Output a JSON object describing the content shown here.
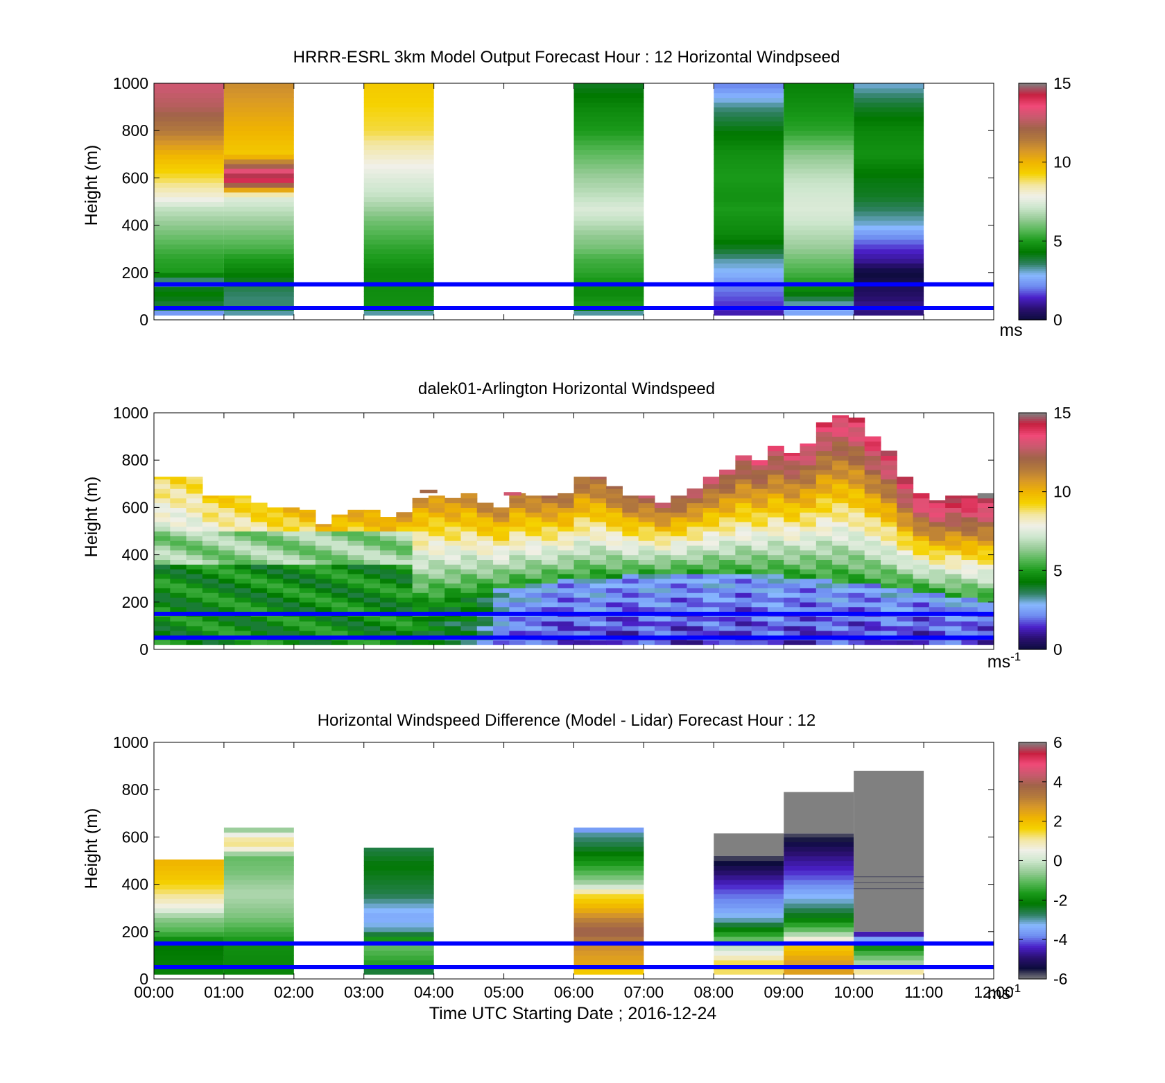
{
  "colors": {
    "ref_line": "#0000ff",
    "nodata": "#808080",
    "speed_scale": [
      "#0c0c3c",
      "#2a1070",
      "#4a20c8",
      "#6e8cf0",
      "#88b8ff",
      "#2e8060",
      "#007800",
      "#1a9a1a",
      "#58b858",
      "#98cc98",
      "#cde6cd",
      "#f0f0e8",
      "#f3e6a0",
      "#f5d200",
      "#f0b400",
      "#d89828",
      "#b47a3c",
      "#a06448",
      "#c85a6e",
      "#f04a78",
      "#c82040",
      "#808080"
    ],
    "diff_scale": [
      "#808080",
      "#0c0c3c",
      "#2a1070",
      "#4a20c8",
      "#6e8cf0",
      "#88b8ff",
      "#2e8060",
      "#007800",
      "#1a9a1a",
      "#58b858",
      "#98cc98",
      "#cde6cd",
      "#f0f0e8",
      "#f3e6a0",
      "#f5d200",
      "#f0b400",
      "#d89828",
      "#b47a3c",
      "#a06448",
      "#c85a6e",
      "#f04a78",
      "#c82040",
      "#808080"
    ]
  },
  "x_axis": {
    "ticks": [
      "00:00",
      "01:00",
      "02:00",
      "03:00",
      "04:00",
      "05:00",
      "06:00",
      "07:00",
      "08:00",
      "09:00",
      "10:00",
      "11:00",
      "12:00"
    ],
    "label": "Time UTC  Starting Date ; 2016-12-24"
  },
  "chart_data": [
    {
      "type": "heatmap",
      "title": "HRRR-ESRL 3km Model Output   Forecast Hour : 12 Horizontal Windpseed",
      "ylabel": "Height (m)",
      "xlim": [
        0,
        12
      ],
      "ylim": [
        0,
        1000
      ],
      "y_ticks": [
        0,
        200,
        400,
        600,
        800,
        1000
      ],
      "reference_lines_m": [
        50,
        150
      ],
      "colorbar": {
        "min": 0,
        "max": 15,
        "ticks": [
          0,
          5,
          10,
          15
        ],
        "unit": "ms",
        "unit_sup": ""
      },
      "columns": [
        {
          "t0": 0,
          "t1": 1,
          "profile": [
            [
              25,
              2
            ],
            [
              45,
              3.5
            ],
            [
              60,
              3.8
            ],
            [
              80,
              4
            ],
            [
              120,
              4.5
            ],
            [
              160,
              3
            ],
            [
              200,
              5
            ],
            [
              260,
              5.2
            ],
            [
              300,
              5.5
            ],
            [
              360,
              6
            ],
            [
              420,
              6.5
            ],
            [
              470,
              7
            ],
            [
              520,
              8
            ],
            [
              600,
              9
            ],
            [
              700,
              10
            ],
            [
              800,
              11.5
            ],
            [
              900,
              12.5
            ],
            [
              1000,
              13
            ]
          ]
        },
        {
          "t0": 1,
          "t1": 2,
          "profile": [
            [
              25,
              3
            ],
            [
              45,
              4
            ],
            [
              60,
              3.5
            ],
            [
              100,
              3.5
            ],
            [
              150,
              3.8
            ],
            [
              200,
              4.5
            ],
            [
              260,
              5
            ],
            [
              300,
              5.5
            ],
            [
              360,
              6
            ],
            [
              420,
              6.5
            ],
            [
              470,
              7
            ],
            [
              520,
              7.5
            ],
            [
              600,
              15
            ],
            [
              700,
              9.5
            ],
            [
              800,
              10
            ],
            [
              900,
              10.5
            ],
            [
              1000,
              11
            ]
          ]
        },
        {
          "t0": 3,
          "t1": 4,
          "profile": [
            [
              25,
              3
            ],
            [
              60,
              4.8
            ],
            [
              200,
              4.6
            ],
            [
              260,
              5
            ],
            [
              300,
              5.2
            ],
            [
              360,
              5.6
            ],
            [
              420,
              6
            ],
            [
              470,
              6.5
            ],
            [
              520,
              7
            ],
            [
              600,
              7.5
            ],
            [
              700,
              8.2
            ],
            [
              800,
              9
            ],
            [
              1000,
              9.5
            ]
          ]
        },
        {
          "t0": 6,
          "t1": 7,
          "profile": [
            [
              25,
              3
            ],
            [
              60,
              5
            ],
            [
              120,
              4.6
            ],
            [
              200,
              5.2
            ],
            [
              260,
              5.5
            ],
            [
              300,
              6
            ],
            [
              360,
              6.4
            ],
            [
              420,
              7
            ],
            [
              470,
              7.4
            ],
            [
              520,
              7
            ],
            [
              600,
              6.5
            ],
            [
              700,
              5.8
            ],
            [
              800,
              5
            ],
            [
              900,
              4.6
            ],
            [
              1000,
              4
            ]
          ]
        },
        {
          "t0": 8,
          "t1": 9,
          "profile": [
            [
              25,
              1.2
            ],
            [
              60,
              1.5
            ],
            [
              100,
              1.8
            ],
            [
              150,
              2.2
            ],
            [
              200,
              2.8
            ],
            [
              250,
              3.2
            ],
            [
              300,
              4
            ],
            [
              360,
              4.6
            ],
            [
              420,
              4.8
            ],
            [
              470,
              5
            ],
            [
              520,
              4.8
            ],
            [
              600,
              5
            ],
            [
              700,
              4.8
            ],
            [
              800,
              4.2
            ],
            [
              900,
              3.4
            ],
            [
              1000,
              2
            ]
          ]
        },
        {
          "t0": 9,
          "t1": 10,
          "profile": [
            [
              25,
              2.5
            ],
            [
              60,
              3
            ],
            [
              100,
              4
            ],
            [
              150,
              5
            ],
            [
              200,
              5.5
            ],
            [
              260,
              6
            ],
            [
              300,
              6.4
            ],
            [
              360,
              6.8
            ],
            [
              420,
              7.2
            ],
            [
              470,
              7.4
            ],
            [
              520,
              7.3
            ],
            [
              600,
              7
            ],
            [
              700,
              6.3
            ],
            [
              800,
              5.2
            ],
            [
              900,
              4.8
            ],
            [
              1000,
              4.5
            ]
          ]
        },
        {
          "t0": 10,
          "t1": 11,
          "profile": [
            [
              25,
              0.8
            ],
            [
              60,
              1
            ],
            [
              100,
              0.6
            ],
            [
              150,
              0.3
            ],
            [
              200,
              0
            ],
            [
              250,
              1
            ],
            [
              300,
              1.5
            ],
            [
              350,
              2.2
            ],
            [
              400,
              3
            ],
            [
              470,
              3.6
            ],
            [
              520,
              4
            ],
            [
              600,
              4.2
            ],
            [
              700,
              4.8
            ],
            [
              800,
              4.6
            ],
            [
              900,
              4
            ],
            [
              1000,
              3
            ]
          ]
        }
      ]
    },
    {
      "type": "heatmap",
      "title": "dalek01-Arlington  Horizontal Windspeed",
      "ylabel": "Height (m)",
      "xlim": [
        0,
        12
      ],
      "ylim": [
        0,
        1000
      ],
      "y_ticks": [
        0,
        200,
        400,
        600,
        800,
        1000
      ],
      "reference_lines_m": [
        50,
        150
      ],
      "colorbar": {
        "min": 0,
        "max": 15,
        "ticks": [
          0,
          5,
          10,
          15
        ],
        "unit": "ms",
        "unit_sup": "-1"
      },
      "time_step_h": 0.25,
      "top_height_m": [
        730,
        730,
        730,
        650,
        650,
        650,
        620,
        600,
        600,
        590,
        530,
        570,
        590,
        590,
        560,
        580,
        640,
        650,
        640,
        660,
        620,
        600,
        660,
        650,
        650,
        660,
        730,
        730,
        690,
        650,
        650,
        620,
        650,
        680,
        730,
        760,
        820,
        800,
        860,
        830,
        870,
        960,
        990,
        980,
        900,
        840,
        730,
        660,
        630,
        650,
        650,
        660
      ],
      "reference_cells": [
        {
          "t": 3.8,
          "z": 660,
          "v": 12
        },
        {
          "t": 5.0,
          "z": 650,
          "v": 13
        }
      ]
    },
    {
      "type": "heatmap",
      "title": "Horizontal Windspeed Difference (Model - Lidar) Forecast Hour : 12",
      "ylabel": "Height (m)",
      "xlim": [
        0,
        12
      ],
      "ylim": [
        0,
        1000
      ],
      "y_ticks": [
        0,
        200,
        400,
        600,
        800,
        1000
      ],
      "reference_lines_m": [
        50,
        150
      ],
      "colorbar": {
        "min": -6,
        "max": 6,
        "ticks": [
          -6,
          -4,
          -2,
          0,
          2,
          4,
          6
        ],
        "unit": "ms",
        "unit_sup": "-1"
      },
      "columns": [
        {
          "t0": 0,
          "t1": 1,
          "top": 505,
          "profile": [
            [
              20,
              -2
            ],
            [
              150,
              -2.2
            ],
            [
              200,
              -1.2
            ],
            [
              260,
              -0.6
            ],
            [
              300,
              0.5
            ],
            [
              360,
              1.2
            ],
            [
              420,
              1.8
            ],
            [
              500,
              2.2
            ]
          ]
        },
        {
          "t0": 1,
          "t1": 2,
          "top": 640,
          "profile": [
            [
              20,
              -2
            ],
            [
              150,
              -1.8
            ],
            [
              260,
              -0.8
            ],
            [
              360,
              -0.3
            ],
            [
              450,
              -0.8
            ],
            [
              520,
              -1
            ],
            [
              560,
              1.2
            ],
            [
              600,
              1
            ],
            [
              630,
              -0.5
            ],
            [
              640,
              0.6
            ]
          ]
        },
        {
          "t0": 3,
          "t1": 4,
          "top": 555,
          "profile": [
            [
              20,
              -2.8
            ],
            [
              60,
              -1.6
            ],
            [
              150,
              -0.9
            ],
            [
              200,
              -2.9
            ],
            [
              260,
              -3.5
            ],
            [
              300,
              -3.2
            ],
            [
              360,
              -2.6
            ],
            [
              420,
              -2.4
            ],
            [
              480,
              -2.2
            ],
            [
              555,
              -2.6
            ]
          ]
        },
        {
          "t0": 6,
          "t1": 7,
          "top": 640,
          "profile": [
            [
              20,
              1.6
            ],
            [
              60,
              2.4
            ],
            [
              150,
              3
            ],
            [
              200,
              4
            ],
            [
              260,
              3
            ],
            [
              300,
              2.2
            ],
            [
              360,
              1.4
            ],
            [
              400,
              -0.3
            ],
            [
              440,
              -1
            ],
            [
              500,
              -1.8
            ],
            [
              560,
              -2.5
            ],
            [
              620,
              -3
            ],
            [
              640,
              -4.2
            ]
          ]
        },
        {
          "t0": 8,
          "t1": 9,
          "top": 615,
          "nodata_above": 520,
          "profile": [
            [
              20,
              1.2
            ],
            [
              60,
              1.6
            ],
            [
              150,
              -0.5
            ],
            [
              200,
              -1.8
            ],
            [
              250,
              -3
            ],
            [
              300,
              -3.6
            ],
            [
              360,
              -4
            ],
            [
              420,
              -4.6
            ],
            [
              470,
              -5.2
            ],
            [
              520,
              -5.8
            ]
          ]
        },
        {
          "t0": 9,
          "t1": 10,
          "top": 790,
          "nodata_above": 615,
          "profile": [
            [
              20,
              2.5
            ],
            [
              60,
              2.8
            ],
            [
              150,
              1.6
            ],
            [
              200,
              -0.8
            ],
            [
              260,
              -2.2
            ],
            [
              320,
              -3
            ],
            [
              380,
              -3.6
            ],
            [
              440,
              -4.2
            ],
            [
              520,
              -4.8
            ],
            [
              580,
              -5.4
            ],
            [
              615,
              -5.8
            ]
          ]
        },
        {
          "t0": 10,
          "t1": 11,
          "top": 880,
          "nodata_above": 200,
          "profile": [
            [
              20,
              1.5
            ],
            [
              60,
              -0.2
            ],
            [
              120,
              -1.5
            ],
            [
              150,
              -2.5
            ],
            [
              200,
              -5
            ]
          ]
        }
      ],
      "annotations": [
        {
          "t0": 10,
          "t1": 11,
          "z": [
            380,
            405,
            430
          ],
          "v": -5.8,
          "note": "dark bands"
        }
      ]
    }
  ]
}
